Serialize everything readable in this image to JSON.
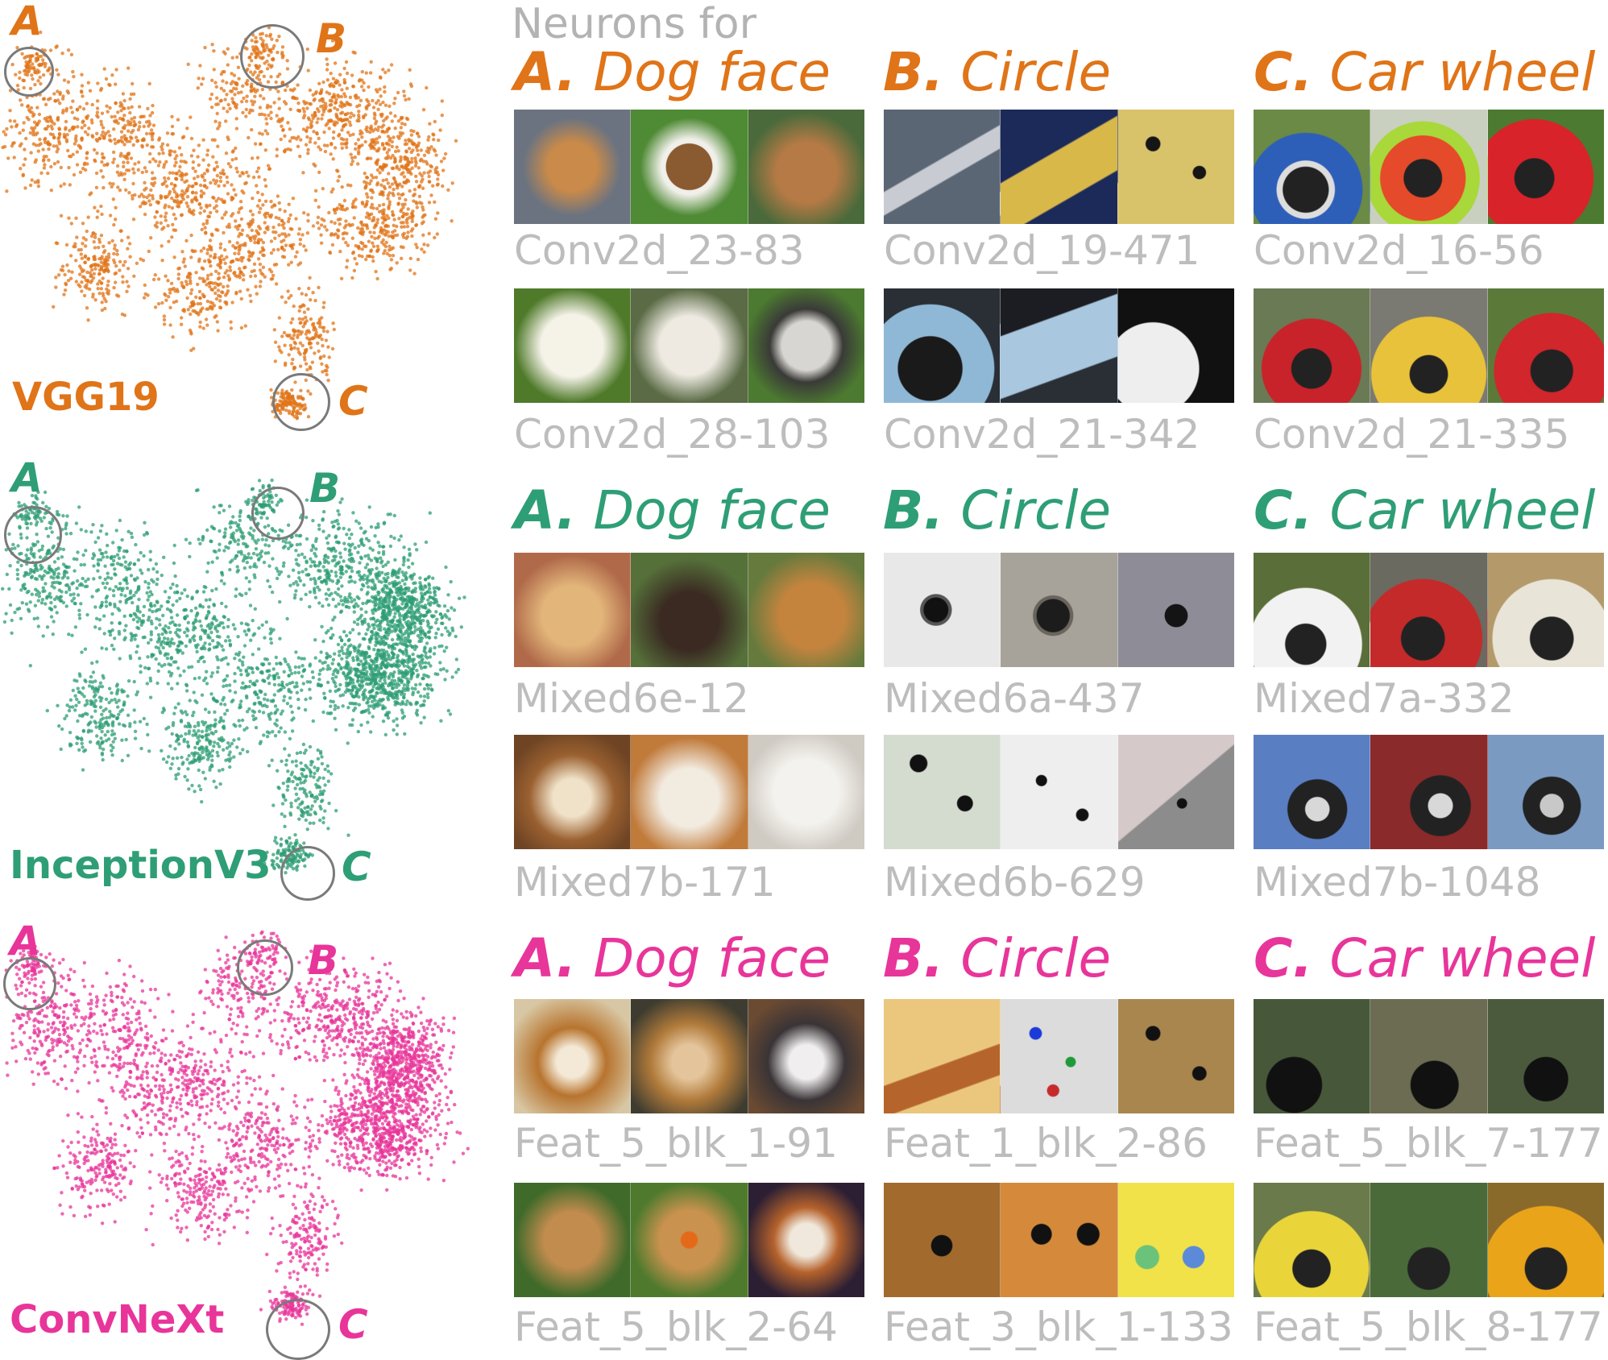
{
  "header": "Neurons for",
  "categories": {
    "a_letter": "A.",
    "a_name": "Dog face",
    "b_letter": "B.",
    "b_name": "Circle",
    "c_letter": "C.",
    "c_name": "Car wheel"
  },
  "markers": {
    "a": "A",
    "b": "B",
    "c": "C"
  },
  "colors": {
    "vgg": "#e07418",
    "inception": "#2e9e76",
    "convnext": "#e8359a",
    "label": "#bdbdbd"
  },
  "models": [
    {
      "name": "VGG19",
      "neurons": {
        "a1": "Conv2d_23-83",
        "a2": "Conv2d_28-103",
        "b1": "Conv2d_19-471",
        "b2": "Conv2d_21-342",
        "c1": "Conv2d_16-56",
        "c2": "Conv2d_21-335"
      }
    },
    {
      "name": "InceptionV3",
      "neurons": {
        "a1": "Mixed6e-12",
        "a2": "Mixed7b-171",
        "b1": "Mixed6a-437",
        "b2": "Mixed6b-629",
        "c1": "Mixed7a-332",
        "c2": "Mixed7b-1048"
      }
    },
    {
      "name": "ConvNeXt",
      "neurons": {
        "a1": "Feat_5_blk_1-91",
        "a2": "Feat_5_blk_2-64",
        "b1": "Feat_1_blk_2-86",
        "b2": "Feat_3_blk_1-133",
        "c1": "Feat_5_blk_7-177",
        "c2": "Feat_5_blk_8-177"
      }
    }
  ]
}
